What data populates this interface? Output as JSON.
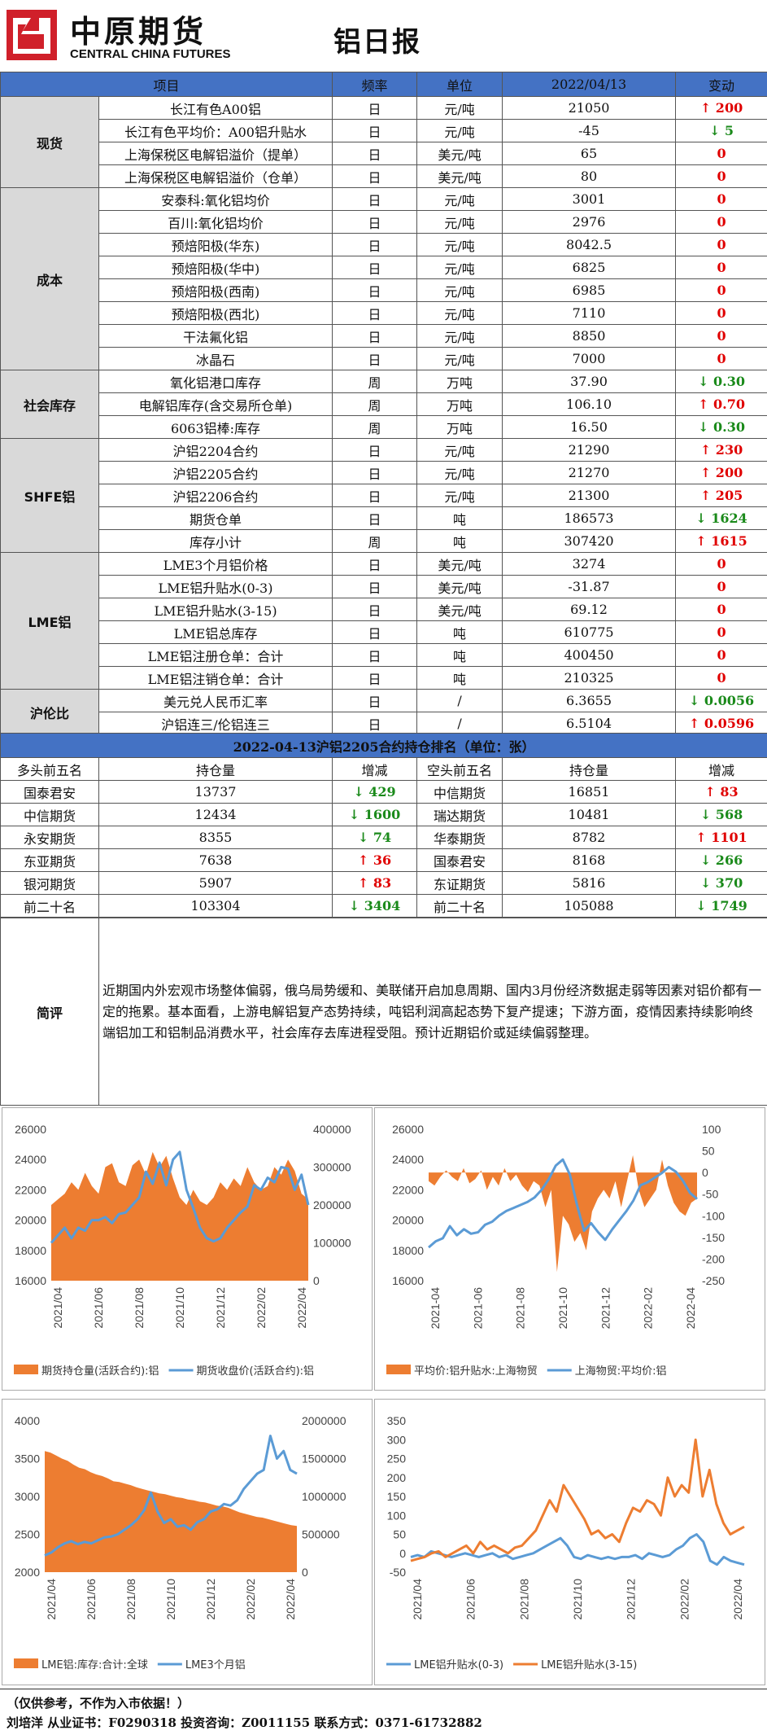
{
  "header": {
    "logo_cn": "中原期货",
    "logo_en": "CENTRAL CHINA FUTURES",
    "title": "铝日报"
  },
  "table": {
    "headers": [
      "项目",
      "频率",
      "单位",
      "2022/04/13",
      "变动"
    ],
    "categories": {
      "spot": "现货",
      "cost": "成本",
      "stock": "社会库存",
      "shfe": "SHFE铝",
      "lme": "LME铝",
      "ratio": "沪伦比"
    },
    "rows": [
      {
        "item": "长江有色A00铝",
        "freq": "日",
        "unit": "元/吨",
        "value": "21050",
        "change": "↑ 200",
        "dir": "up"
      },
      {
        "item": "长江有色平均价：A00铝升贴水",
        "freq": "日",
        "unit": "元/吨",
        "value": "-45",
        "change": "↓ 5",
        "dir": "down"
      },
      {
        "item": "上海保税区电解铝溢价（提单）",
        "freq": "日",
        "unit": "美元/吨",
        "value": "65",
        "change": "0",
        "dir": "zero"
      },
      {
        "item": "上海保税区电解铝溢价（仓单）",
        "freq": "日",
        "unit": "美元/吨",
        "value": "80",
        "change": "0",
        "dir": "zero"
      },
      {
        "item": "安泰科:氧化铝均价",
        "freq": "日",
        "unit": "元/吨",
        "value": "3001",
        "change": "0",
        "dir": "zero"
      },
      {
        "item": "百川:氧化铝均价",
        "freq": "日",
        "unit": "元/吨",
        "value": "2976",
        "change": "0",
        "dir": "zero"
      },
      {
        "item": "预焙阳极(华东)",
        "freq": "日",
        "unit": "元/吨",
        "value": "8042.5",
        "change": "0",
        "dir": "zero"
      },
      {
        "item": "预焙阳极(华中)",
        "freq": "日",
        "unit": "元/吨",
        "value": "6825",
        "change": "0",
        "dir": "zero"
      },
      {
        "item": "预焙阳极(西南)",
        "freq": "日",
        "unit": "元/吨",
        "value": "6985",
        "change": "0",
        "dir": "zero"
      },
      {
        "item": "预焙阳极(西北)",
        "freq": "日",
        "unit": "元/吨",
        "value": "7110",
        "change": "0",
        "dir": "zero"
      },
      {
        "item": "干法氟化铝",
        "freq": "日",
        "unit": "元/吨",
        "value": "8850",
        "change": "0",
        "dir": "zero"
      },
      {
        "item": "冰晶石",
        "freq": "日",
        "unit": "元/吨",
        "value": "7000",
        "change": "0",
        "dir": "zero"
      },
      {
        "item": "氧化铝港口库存",
        "freq": "周",
        "unit": "万吨",
        "value": "37.90",
        "change": "↓ 0.30",
        "dir": "down"
      },
      {
        "item": "电解铝库存(含交易所仓单)",
        "freq": "周",
        "unit": "万吨",
        "value": "106.10",
        "change": "↑ 0.70",
        "dir": "up"
      },
      {
        "item": "6063铝棒:库存",
        "freq": "周",
        "unit": "万吨",
        "value": "16.50",
        "change": "↓ 0.30",
        "dir": "down"
      },
      {
        "item": "沪铝2204合约",
        "freq": "日",
        "unit": "元/吨",
        "value": "21290",
        "change": "↑ 230",
        "dir": "up"
      },
      {
        "item": "沪铝2205合约",
        "freq": "日",
        "unit": "元/吨",
        "value": "21270",
        "change": "↑ 200",
        "dir": "up"
      },
      {
        "item": "沪铝2206合约",
        "freq": "日",
        "unit": "元/吨",
        "value": "21300",
        "change": "↑ 205",
        "dir": "up"
      },
      {
        "item": "期货仓单",
        "freq": "日",
        "unit": "吨",
        "value": "186573",
        "change": "↓ 1624",
        "dir": "down"
      },
      {
        "item": "库存小计",
        "freq": "周",
        "unit": "吨",
        "value": "307420",
        "change": "↑ 1615",
        "dir": "up"
      },
      {
        "item": "LME3个月铝价格",
        "freq": "日",
        "unit": "美元/吨",
        "value": "3274",
        "change": "0",
        "dir": "zero"
      },
      {
        "item": "LME铝升贴水(0-3)",
        "freq": "日",
        "unit": "美元/吨",
        "value": "-31.87",
        "change": "0",
        "dir": "zero"
      },
      {
        "item": "LME铝升贴水(3-15)",
        "freq": "日",
        "unit": "美元/吨",
        "value": "69.12",
        "change": "0",
        "dir": "zero"
      },
      {
        "item": "LME铝总库存",
        "freq": "日",
        "unit": "吨",
        "value": "610775",
        "change": "0",
        "dir": "zero"
      },
      {
        "item": "LME铝注册仓单：合计",
        "freq": "日",
        "unit": "吨",
        "value": "400450",
        "change": "0",
        "dir": "zero"
      },
      {
        "item": "LME铝注销仓单：合计",
        "freq": "日",
        "unit": "吨",
        "value": "210325",
        "change": "0",
        "dir": "zero"
      },
      {
        "item": "美元兑人民币汇率",
        "freq": "日",
        "unit": "/",
        "value": "6.3655",
        "change": "↓ 0.0056",
        "dir": "down"
      },
      {
        "item": "沪铝连三/伦铝连三",
        "freq": "日",
        "unit": "/",
        "value": "6.5104",
        "change": "↑ 0.0596",
        "dir": "up"
      }
    ]
  },
  "ranking": {
    "title": "2022-04-13沪铝2205合约持仓排名（单位：张）",
    "headers": [
      "多头前五名",
      "持仓量",
      "增减",
      "空头前五名",
      "持仓量",
      "增减"
    ],
    "rows": [
      {
        "lname": "国泰君安",
        "lvol": "13737",
        "lchg": "↓ 429",
        "ldir": "down",
        "sname": "中信期货",
        "svol": "16851",
        "schg": "↑ 83",
        "sdir": "up"
      },
      {
        "lname": "中信期货",
        "lvol": "12434",
        "lchg": "↓ 1600",
        "ldir": "down",
        "sname": "瑞达期货",
        "svol": "10481",
        "schg": "↓ 568",
        "sdir": "down"
      },
      {
        "lname": "永安期货",
        "lvol": "8355",
        "lchg": "↓ 74",
        "ldir": "down",
        "sname": "华泰期货",
        "svol": "8782",
        "schg": "↑ 1101",
        "sdir": "up"
      },
      {
        "lname": "东亚期货",
        "lvol": "7638",
        "lchg": "↑ 36",
        "ldir": "up",
        "sname": "国泰君安",
        "svol": "8168",
        "schg": "↓ 266",
        "sdir": "down"
      },
      {
        "lname": "银河期货",
        "lvol": "5907",
        "lchg": "↑ 83",
        "ldir": "up",
        "sname": "东证期货",
        "svol": "5816",
        "schg": "↓ 370",
        "sdir": "down"
      },
      {
        "lname": "前二十名",
        "lvol": "103304",
        "lchg": "↓ 3404",
        "ldir": "down",
        "sname": "前二十名",
        "svol": "105088",
        "schg": "↓ 1749",
        "sdir": "down"
      }
    ]
  },
  "comment": {
    "label": "简评",
    "text": "近期国内外宏观市场整体偏弱，俄乌局势缓和、美联储开启加息周期、国内3月份经济数据走弱等因素对铝价都有一定的拖累。基本面看，上游电解铝复产态势持续，吨铝利润高起态势下复产提速；下游方面，疫情因素持续影响终端铝加工和铝制品消费水平，社会库存去库进程受阻。预计近期铝价或延续偏弱整理。"
  },
  "chart_data": [
    {
      "type": "area",
      "x_ticks": [
        "2021/04",
        "2021/06",
        "2021/08",
        "2021/10",
        "2021/12",
        "2022/02",
        "2022/04"
      ],
      "ylim": [
        16000,
        26000
      ],
      "y2lim": [
        0,
        400000
      ],
      "y_ticks": [
        "16000",
        "18000",
        "20000",
        "22000",
        "24000",
        "26000"
      ],
      "y2_ticks": [
        "0",
        "100000",
        "200000",
        "300000",
        "400000"
      ],
      "series": [
        {
          "name": "期货持仓量(活跃合约):铝",
          "axis": "right",
          "kind": "area",
          "color": "#ed7d31",
          "values": [
            200000,
            215000,
            230000,
            260000,
            240000,
            285000,
            250000,
            230000,
            300000,
            310000,
            260000,
            250000,
            305000,
            320000,
            280000,
            340000,
            300000,
            330000,
            270000,
            220000,
            200000,
            240000,
            210000,
            200000,
            220000,
            260000,
            240000,
            270000,
            250000,
            300000,
            260000,
            240000,
            250000,
            300000,
            280000,
            320000,
            290000,
            230000,
            215000
          ]
        },
        {
          "name": "期货收盘价(活跃合约):铝",
          "axis": "left",
          "kind": "line",
          "color": "#5b9bd5",
          "values": [
            18500,
            19000,
            19500,
            18800,
            19500,
            19300,
            20000,
            20000,
            20200,
            19800,
            20400,
            20500,
            21000,
            21500,
            23200,
            22400,
            23800,
            22300,
            24000,
            24500,
            22000,
            20800,
            19500,
            18800,
            18600,
            18800,
            19500,
            20000,
            20500,
            20900,
            22300,
            22000,
            22800,
            22500,
            23500,
            23400,
            22000,
            23000,
            21000
          ]
        }
      ]
    },
    {
      "type": "area",
      "x_ticks": [
        "2021-04",
        "2021-06",
        "2021-08",
        "2021-10",
        "2021-12",
        "2022-02",
        "2022-04"
      ],
      "ylim": [
        16000,
        26000
      ],
      "y2lim": [
        -250,
        100
      ],
      "y_ticks": [
        "16000",
        "18000",
        "20000",
        "22000",
        "24000",
        "26000"
      ],
      "y2_ticks": [
        "-250",
        "-200",
        "-150",
        "-100",
        "-50",
        "0",
        "50",
        "100"
      ],
      "series": [
        {
          "name": "平均价:铝升贴水:上海物贸",
          "axis": "right",
          "kind": "area",
          "color": "#ed7d31",
          "values": [
            -20,
            -30,
            -10,
            5,
            -10,
            -20,
            10,
            -25,
            -15,
            5,
            -40,
            -10,
            -30,
            10,
            -20,
            -5,
            -30,
            -45,
            -20,
            -30,
            -80,
            -40,
            -230,
            -100,
            -120,
            -160,
            -140,
            -180,
            -90,
            -60,
            -40,
            -60,
            -20,
            -80,
            -20,
            40,
            -40,
            -80,
            -60,
            -40,
            30,
            -30,
            -70,
            -90,
            -100,
            -70,
            -60
          ]
        },
        {
          "name": "上海物贸:平均价:铝",
          "axis": "left",
          "kind": "line",
          "color": "#5b9bd5",
          "values": [
            18200,
            18600,
            18800,
            19600,
            19000,
            19400,
            19100,
            19200,
            19700,
            19900,
            20300,
            20600,
            20800,
            21000,
            21200,
            21500,
            22000,
            22700,
            23600,
            24000,
            23000,
            21000,
            19300,
            19800,
            19200,
            18700,
            19400,
            20000,
            20600,
            21300,
            22300,
            22500,
            22800,
            23100,
            23500,
            23200,
            22600,
            21800,
            21400
          ]
        }
      ]
    },
    {
      "type": "area",
      "x_ticks": [
        "2021/04",
        "2021/06",
        "2021/08",
        "2021/10",
        "2021/12",
        "2022/02",
        "2022/04"
      ],
      "ylim": [
        2000,
        4000
      ],
      "y2lim": [
        0,
        2000000
      ],
      "y_ticks": [
        "2000",
        "2500",
        "3000",
        "3500",
        "4000"
      ],
      "y2_ticks": [
        "0",
        "500000",
        "1000000",
        "1500000",
        "2000000"
      ],
      "series": [
        {
          "name": "LME铝:库存:合计:全球",
          "axis": "left",
          "kind": "area",
          "color": "#ed7d31",
          "values": [
            3600,
            3580,
            3540,
            3500,
            3470,
            3420,
            3380,
            3360,
            3320,
            3290,
            3270,
            3240,
            3200,
            3190,
            3170,
            3150,
            3120,
            3100,
            3080,
            3060,
            3040,
            3030,
            3010,
            2990,
            2980,
            2960,
            2950,
            2930,
            2920,
            2900,
            2880,
            2870,
            2850,
            2820,
            2790,
            2770,
            2750,
            2730,
            2720,
            2700,
            2680,
            2660,
            2640,
            2620,
            2610
          ]
        },
        {
          "name": "LME3个月铝",
          "axis": "right",
          "kind": "line",
          "color": "#5b9bd5",
          "values": [
            220000,
            260000,
            330000,
            380000,
            410000,
            370000,
            400000,
            380000,
            420000,
            460000,
            470000,
            500000,
            560000,
            620000,
            700000,
            820000,
            1050000,
            800000,
            650000,
            700000,
            600000,
            620000,
            560000,
            660000,
            700000,
            800000,
            830000,
            900000,
            880000,
            950000,
            1100000,
            1200000,
            1300000,
            1350000,
            1800000,
            1500000,
            1600000,
            1350000,
            1300000
          ]
        }
      ]
    },
    {
      "type": "line",
      "x_ticks": [
        "2021/04",
        "2021/06",
        "2021/08",
        "2021/10",
        "2021/12",
        "2022/02",
        "2022/04"
      ],
      "ylim": [
        -50,
        350
      ],
      "y_ticks": [
        "-50",
        "0",
        "50",
        "100",
        "150",
        "200",
        "250",
        "300",
        "350"
      ],
      "series": [
        {
          "name": "LME铝升贴水(0-3)",
          "kind": "line",
          "color": "#5b9bd5",
          "values": [
            -10,
            -5,
            -10,
            5,
            0,
            -5,
            -10,
            -5,
            0,
            -5,
            -10,
            -5,
            0,
            -10,
            -5,
            -15,
            -10,
            -5,
            0,
            10,
            20,
            30,
            40,
            20,
            -10,
            -15,
            -5,
            -10,
            -15,
            -10,
            -15,
            -10,
            -10,
            -5,
            -15,
            0,
            -5,
            -10,
            -5,
            10,
            20,
            40,
            50,
            30,
            -20,
            -30,
            -10,
            -20,
            -25,
            -30
          ]
        },
        {
          "name": "LME铝升贴水(3-15)",
          "kind": "line",
          "color": "#ed7d31",
          "values": [
            -20,
            -15,
            -10,
            0,
            5,
            -10,
            0,
            10,
            20,
            0,
            30,
            10,
            20,
            10,
            0,
            15,
            20,
            40,
            60,
            100,
            140,
            110,
            180,
            150,
            120,
            90,
            50,
            60,
            40,
            50,
            30,
            80,
            120,
            110,
            140,
            130,
            100,
            200,
            150,
            180,
            160,
            300,
            150,
            220,
            130,
            80,
            50,
            60,
            70
          ]
        }
      ]
    }
  ],
  "footer": {
    "line1": "（仅供参考，不作为入市依据！）",
    "line2": "刘培洋   从业证书：F0290318     投资咨询：Z0011155       联系方式：0371-61732882"
  }
}
